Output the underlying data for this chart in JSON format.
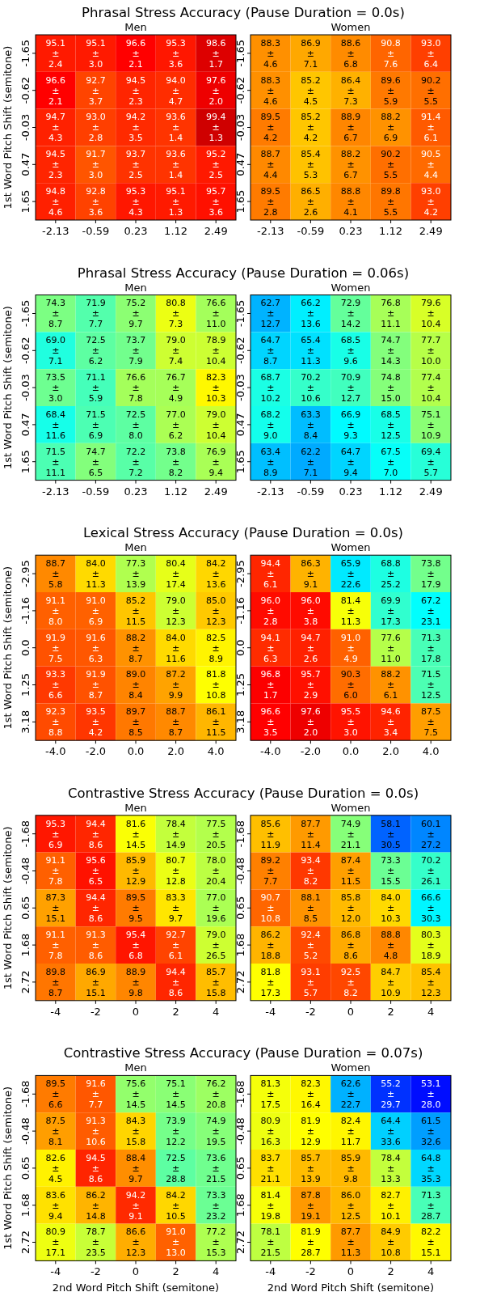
{
  "chart_data": [
    {
      "type": "heatmap",
      "title": "Phrasal Stress Accuracy (Pause Duration = 0.0s)",
      "subtitle": "Men",
      "ylabel": "1st Word Pitch Shift (semitone)",
      "data_labels": true,
      "categories": [
        "-2.13",
        "-0.59",
        "0.23",
        "1.12",
        "2.49"
      ],
      "y_categories": [
        "-1.65",
        "-0.62",
        "-0.03",
        "0.47",
        "1.65"
      ],
      "cells": [
        [
          95.1,
          95.1,
          96.6,
          95.3,
          98.6
        ],
        [
          96.6,
          92.7,
          94.5,
          94.0,
          97.6
        ],
        [
          94.7,
          93.0,
          94.2,
          93.6,
          99.4
        ],
        [
          94.5,
          91.7,
          93.7,
          93.6,
          95.2
        ],
        [
          94.8,
          92.8,
          95.3,
          95.1,
          95.7
        ]
      ],
      "cell_labels": [
        [
          "95.1",
          "95.1",
          "96.6",
          "95.3",
          "98.6"
        ],
        [
          "96.6",
          "92.7",
          "94.5",
          "94.0",
          "97.6"
        ],
        [
          "94.7",
          "93.0",
          "94.2",
          "93.6",
          "99.4"
        ],
        [
          "94.5",
          "91.7",
          "93.7",
          "93.6",
          "95.2"
        ],
        [
          "94.8",
          "92.8",
          "95.3",
          "95.1",
          "95.7"
        ]
      ],
      "annotations": [
        "±\n2.4",
        "±\n3.0",
        "±\n2.1",
        "±\n3.6",
        "±\n1.7",
        "±\n2.1",
        "±\n3.7",
        "±\n2.3",
        "±\n4.7",
        "±\n2.0",
        "±\n4.3",
        "±\n2.8",
        "±\n3.5",
        "±\n1.4",
        "±\n1.3",
        "±\n2.3",
        "±\n3.0",
        "±\n2.5",
        "±\n1.4",
        "±\n2.5",
        "±\n4.6",
        "±\n3.6",
        "±\n4.3",
        "±\n1.3",
        "±\n3.6"
      ]
    },
    {
      "type": "heatmap",
      "subtitle": "Women",
      "data_labels": true,
      "categories": [
        "-2.13",
        "-0.59",
        "0.23",
        "1.12",
        "2.49"
      ],
      "y_categories": [
        "-1.65",
        "-0.62",
        "-0.03",
        "0.47",
        "1.65"
      ],
      "cells": [
        [
          88.3,
          86.9,
          88.6,
          90.8,
          93.0
        ],
        [
          88.3,
          85.2,
          86.4,
          89.6,
          90.2
        ],
        [
          89.5,
          85.2,
          88.9,
          88.2,
          91.4
        ],
        [
          88.7,
          85.4,
          88.2,
          90.2,
          90.5
        ],
        [
          89.5,
          86.5,
          88.8,
          89.8,
          93.0
        ]
      ],
      "cell_labels": [
        [
          "88.3",
          "86.9",
          "88.6",
          "90.8",
          "93.0"
        ],
        [
          "88.3",
          "85.2",
          "86.4",
          "89.6",
          "90.2"
        ],
        [
          "89.5",
          "85.2",
          "88.9",
          "88.2",
          "91.4"
        ],
        [
          "88.7",
          "85.4",
          "88.2",
          "90.2",
          "90.5"
        ],
        [
          "89.5",
          "86.5",
          "88.8",
          "89.8",
          "93.0"
        ]
      ],
      "annotations": [
        "±\n4.6",
        "±\n7.1",
        "±\n6.8",
        "±\n7.6",
        "±\n6.4",
        "±\n4.6",
        "±\n4.5",
        "±\n7.3",
        "±\n5.9",
        "±\n5.5",
        "±\n4.2",
        "±\n4.2",
        "±\n6.7",
        "±\n6.9",
        "±\n6.1",
        "±\n4.4",
        "±\n5.3",
        "±\n6.7",
        "±\n5.5",
        "±\n4.4",
        "±\n2.8",
        "±\n2.6",
        "±\n4.1",
        "±\n5.5",
        "±\n4.2"
      ]
    },
    {
      "type": "heatmap",
      "title": "Phrasal Stress Accuracy (Pause Duration = 0.06s)",
      "subtitle": "Men",
      "ylabel": "1st Word Pitch Shift (semitone)",
      "data_labels": true,
      "categories": [
        "-2.13",
        "-0.59",
        "0.23",
        "1.12",
        "2.49"
      ],
      "y_categories": [
        "-1.65",
        "-0.62",
        "-0.03",
        "0.47",
        "1.65"
      ],
      "cells": [
        [
          74.3,
          71.9,
          75.2,
          80.8,
          76.6
        ],
        [
          69.0,
          72.5,
          73.7,
          79.0,
          78.9
        ],
        [
          73.5,
          71.1,
          76.6,
          76.7,
          82.3
        ],
        [
          68.4,
          71.5,
          72.5,
          77.0,
          79.0
        ],
        [
          71.5,
          74.7,
          72.2,
          73.8,
          76.9
        ]
      ],
      "cell_labels": [
        [
          "74.3",
          "71.9",
          "75.2",
          "80.8",
          "76.6"
        ],
        [
          "69.0",
          "72.5",
          "73.7",
          "79.0",
          "78.9"
        ],
        [
          "73.5",
          "71.1",
          "76.6",
          "76.7",
          "82.3"
        ],
        [
          "68.4",
          "71.5",
          "72.5",
          "77.0",
          "79.0"
        ],
        [
          "71.5",
          "74.7",
          "72.2",
          "73.8",
          "76.9"
        ]
      ],
      "annotations": [
        "±\n8.7",
        "±\n7.7",
        "±\n9.7",
        "±\n7.3",
        "±\n11.0",
        "±\n7.1",
        "±\n6.2",
        "±\n7.9",
        "±\n7.4",
        "±\n10.4",
        "±\n3.0",
        "±\n5.9",
        "±\n7.8",
        "±\n4.9",
        "±\n10.3",
        "±\n11.6",
        "±\n6.9",
        "±\n8.0",
        "±\n6.2",
        "±\n10.4",
        "±\n11.1",
        "±\n6.5",
        "±\n7.2",
        "±\n8.2",
        "±\n9.4"
      ]
    },
    {
      "type": "heatmap",
      "subtitle": "Women",
      "data_labels": true,
      "categories": [
        "-2.13",
        "-0.59",
        "0.23",
        "1.12",
        "2.49"
      ],
      "y_categories": [
        "-1.65",
        "-0.62",
        "-0.03",
        "0.47",
        "1.65"
      ],
      "cells": [
        [
          62.7,
          66.2,
          72.9,
          76.8,
          79.6
        ],
        [
          64.7,
          65.4,
          68.5,
          74.7,
          77.7
        ],
        [
          68.7,
          70.2,
          70.9,
          74.8,
          77.4
        ],
        [
          68.2,
          63.3,
          66.9,
          68.5,
          75.1
        ],
        [
          63.4,
          62.2,
          64.7,
          67.5,
          69.4
        ]
      ],
      "cell_labels": [
        [
          "62.7",
          "66.2",
          "72.9",
          "76.8",
          "79.6"
        ],
        [
          "64.7",
          "65.4",
          "68.5",
          "74.7",
          "77.7"
        ],
        [
          "68.7",
          "70.2",
          "70.9",
          "74.8",
          "77.4"
        ],
        [
          "68.2",
          "63.3",
          "66.9",
          "68.5",
          "75.1"
        ],
        [
          "63.4",
          "62.2",
          "64.7",
          "67.5",
          "69.4"
        ]
      ],
      "annotations": [
        "±\n12.7",
        "±\n13.6",
        "±\n14.2",
        "±\n11.1",
        "±\n10.4",
        "±\n8.7",
        "±\n11.3",
        "±\n9.6",
        "±\n14.3",
        "±\n10.0",
        "±\n10.2",
        "±\n10.6",
        "±\n12.7",
        "±\n15.0",
        "±\n10.4",
        "±\n9.0",
        "±\n8.4",
        "±\n9.3",
        "±\n12.5",
        "±\n10.9",
        "±\n8.9",
        "±\n7.1",
        "±\n9.4",
        "±\n7.0",
        "±\n5.7"
      ]
    },
    {
      "type": "heatmap",
      "title": "Lexical Stress Accuracy (Pause Duration = 0.0s)",
      "subtitle": "Men",
      "ylabel": "1st Word Pitch Shift (semitone)",
      "data_labels": true,
      "categories": [
        "-4.0",
        "-2.0",
        "0.0",
        "2.0",
        "4.0"
      ],
      "y_categories": [
        "-2.95",
        "-1.16",
        "0.0",
        "1.25",
        "3.18"
      ],
      "cells": [
        [
          88.7,
          84.0,
          77.3,
          80.4,
          84.2
        ],
        [
          91.1,
          91.0,
          85.2,
          79.0,
          85.0
        ],
        [
          91.9,
          91.6,
          88.2,
          84.0,
          82.5
        ],
        [
          93.3,
          91.9,
          89.0,
          87.2,
          81.8
        ],
        [
          92.3,
          93.5,
          89.7,
          88.7,
          86.1
        ]
      ],
      "cell_labels": [
        [
          "88.7",
          "84.0",
          "77.3",
          "80.4",
          "84.2"
        ],
        [
          "91.1",
          "91.0",
          "85.2",
          "79.0",
          "85.0"
        ],
        [
          "91.9",
          "91.6",
          "88.2",
          "84.0",
          "82.5"
        ],
        [
          "93.3",
          "91.9",
          "89.0",
          "87.2",
          "81.8"
        ],
        [
          "92.3",
          "93.5",
          "89.7",
          "88.7",
          "86.1"
        ]
      ],
      "annotations": [
        "±\n5.8",
        "±\n11.3",
        "±\n13.9",
        "±\n17.4",
        "±\n13.6",
        "±\n8.0",
        "±\n6.9",
        "±\n11.5",
        "±\n12.3",
        "±\n12.3",
        "±\n7.5",
        "±\n6.3",
        "±\n8.7",
        "±\n11.6",
        "±\n8.9",
        "±\n6.6",
        "±\n8.7",
        "±\n8.4",
        "±\n9.9",
        "±\n10.8",
        "±\n8.8",
        "±\n4.2",
        "±\n8.5",
        "±\n8.7",
        "±\n11.5"
      ]
    },
    {
      "type": "heatmap",
      "subtitle": "Women",
      "data_labels": true,
      "categories": [
        "-4.0",
        "-2.0",
        "0.0",
        "2.0",
        "4.0"
      ],
      "y_categories": [
        "-2.95",
        "-1.16",
        "0.0",
        "1.25",
        "3.18"
      ],
      "cells": [
        [
          94.4,
          86.3,
          65.9,
          68.8,
          73.8
        ],
        [
          96.0,
          96.0,
          81.4,
          69.9,
          67.2
        ],
        [
          94.1,
          94.7,
          91.0,
          77.6,
          71.3
        ],
        [
          96.8,
          95.7,
          90.3,
          88.2,
          71.5
        ],
        [
          96.6,
          97.6,
          95.5,
          94.6,
          87.5
        ]
      ],
      "cell_labels": [
        [
          "94.4",
          "86.3",
          "65.9",
          "68.8",
          "73.8"
        ],
        [
          "96.0",
          "96.0",
          "81.4",
          "69.9",
          "67.2"
        ],
        [
          "94.1",
          "94.7",
          "91.0",
          "77.6",
          "71.3"
        ],
        [
          "96.8",
          "95.7",
          "90.3",
          "88.2",
          "71.5"
        ],
        [
          "96.6",
          "97.6",
          "95.5",
          "94.6",
          "87.5"
        ]
      ],
      "annotations": [
        "±\n6.1",
        "±\n9.1",
        "±\n22.6",
        "±\n25.2",
        "±\n17.9",
        "±\n2.8",
        "±\n3.8",
        "±\n11.3",
        "±\n17.3",
        "±\n23.1",
        "±\n6.3",
        "±\n2.6",
        "±\n4.9",
        "±\n11.0",
        "±\n17.8",
        "±\n1.7",
        "±\n2.9",
        "±\n6.0",
        "±\n6.1",
        "±\n12.5",
        "±\n3.5",
        "±\n2.0",
        "±\n3.0",
        "±\n3.4",
        "±\n7.5"
      ]
    },
    {
      "type": "heatmap",
      "title": "Contrastive Stress Accuracy (Pause Duration = 0.0s)",
      "subtitle": "Men",
      "ylabel": "1st Word Pitch Shift (semitone)",
      "data_labels": true,
      "categories": [
        "-4",
        "-2",
        "0",
        "2",
        "4"
      ],
      "y_categories": [
        "-1.68",
        "-0.48",
        "0.65",
        "1.68",
        "2.72"
      ],
      "cells": [
        [
          95.3,
          94.4,
          81.6,
          78.4,
          77.5
        ],
        [
          91.1,
          95.6,
          85.9,
          80.7,
          78.0
        ],
        [
          87.3,
          94.4,
          89.5,
          83.3,
          77.0
        ],
        [
          91.1,
          91.3,
          95.4,
          92.7,
          79.0
        ],
        [
          89.8,
          86.9,
          88.9,
          94.4,
          85.7
        ]
      ],
      "cell_labels": [
        [
          "95.3",
          "94.4",
          "81.6",
          "78.4",
          "77.5"
        ],
        [
          "91.1",
          "95.6",
          "85.9",
          "80.7",
          "78.0"
        ],
        [
          "87.3",
          "94.4",
          "89.5",
          "83.3",
          "77.0"
        ],
        [
          "91.1",
          "91.3",
          "95.4",
          "92.7",
          "79.0"
        ],
        [
          "89.8",
          "86.9",
          "88.9",
          "94.4",
          "85.7"
        ]
      ],
      "annotations": [
        "±\n6.9",
        "±\n8.6",
        "±\n14.5",
        "±\n14.9",
        "±\n20.5",
        "±\n7.8",
        "±\n6.5",
        "±\n12.9",
        "±\n12.8",
        "±\n20.4",
        "±\n15.1",
        "±\n8.6",
        "±\n9.5",
        "±\n9.7",
        "±\n19.6",
        "±\n7.8",
        "±\n8.6",
        "±\n6.8",
        "±\n6.1",
        "±\n26.5",
        "±\n8.7",
        "±\n15.1",
        "±\n9.8",
        "±\n8.6",
        "±\n15.8"
      ]
    },
    {
      "type": "heatmap",
      "subtitle": "Women",
      "data_labels": true,
      "categories": [
        "-4",
        "-2",
        "0",
        "2",
        "4"
      ],
      "y_categories": [
        "-1.68",
        "-0.48",
        "0.65",
        "1.68",
        "2.72"
      ],
      "cells": [
        [
          85.6,
          87.7,
          74.9,
          58.1,
          60.1
        ],
        [
          89.2,
          93.4,
          87.4,
          73.3,
          70.2
        ],
        [
          90.7,
          88.1,
          85.8,
          84.0,
          66.6
        ],
        [
          86.2,
          92.4,
          86.8,
          88.8,
          80.3
        ],
        [
          81.8,
          93.1,
          92.5,
          84.7,
          85.4
        ]
      ],
      "cell_labels": [
        [
          "85.6",
          "87.7",
          "74.9",
          "58.1",
          "60.1"
        ],
        [
          "89.2",
          "93.4",
          "87.4",
          "73.3",
          "70.2"
        ],
        [
          "90.7",
          "88.1",
          "85.8",
          "84.0",
          "66.6"
        ],
        [
          "86.2",
          "92.4",
          "86.8",
          "88.8",
          "80.3"
        ],
        [
          "81.8",
          "93.1",
          "92.5",
          "84.7",
          "85.4"
        ]
      ],
      "annotations": [
        "±\n11.9",
        "±\n11.4",
        "±\n21.1",
        "±\n30.5",
        "±\n27.2",
        "±\n7.7",
        "±\n8.2",
        "±\n11.5",
        "±\n15.5",
        "±\n26.1",
        "±\n10.8",
        "±\n8.5",
        "±\n12.0",
        "±\n10.3",
        "±\n30.3",
        "±\n18.8",
        "±\n5.2",
        "±\n8.6",
        "±\n4.8",
        "±\n18.9",
        "±\n17.3",
        "±\n5.7",
        "±\n8.2",
        "±\n10.9",
        "±\n12.3"
      ]
    },
    {
      "type": "heatmap",
      "title": "Contrastive Stress Accuracy (Pause Duration = 0.07s)",
      "subtitle": "Men",
      "ylabel": "1st Word Pitch Shift (semitone)",
      "xlabel": "2nd Word Pitch Shift (semitone)",
      "data_labels": true,
      "categories": [
        "-4",
        "-2",
        "0",
        "2",
        "4"
      ],
      "y_categories": [
        "-1.68",
        "-0.48",
        "0.65",
        "1.68",
        "2.72"
      ],
      "cells": [
        [
          89.5,
          91.6,
          75.6,
          75.1,
          76.2
        ],
        [
          87.5,
          91.3,
          84.3,
          73.9,
          74.9
        ],
        [
          82.6,
          94.5,
          88.4,
          72.5,
          73.6
        ],
        [
          83.6,
          86.2,
          94.2,
          84.2,
          73.3
        ],
        [
          80.9,
          78.7,
          86.6,
          91.0,
          77.2
        ]
      ],
      "cell_labels": [
        [
          "89.5",
          "91.6",
          "75.6",
          "75.1",
          "76.2"
        ],
        [
          "87.5",
          "91.3",
          "84.3",
          "73.9",
          "74.9"
        ],
        [
          "82.6",
          "94.5",
          "88.4",
          "72.5",
          "73.6"
        ],
        [
          "83.6",
          "86.2",
          "94.2",
          "84.2",
          "73.3"
        ],
        [
          "80.9",
          "78.7",
          "86.6",
          "91.0",
          "77.2"
        ]
      ],
      "annotations": [
        "±\n6.6",
        "±\n7.7",
        "±\n14.5",
        "±\n14.5",
        "±\n20.8",
        "±\n8.1",
        "±\n10.6",
        "±\n15.8",
        "±\n12.2",
        "±\n19.5",
        "±\n4.5",
        "±\n8.6",
        "±\n9.7",
        "±\n28.8",
        "±\n21.5",
        "±\n9.4",
        "±\n14.8",
        "±\n9.1",
        "±\n10.5",
        "±\n23.2",
        "±\n17.1",
        "±\n23.5",
        "±\n12.3",
        "±\n13.0",
        "±\n15.3"
      ]
    },
    {
      "type": "heatmap",
      "subtitle": "Women",
      "xlabel": "2nd Word Pitch Shift (semitone)",
      "data_labels": true,
      "categories": [
        "-4",
        "-2",
        "0",
        "2",
        "4"
      ],
      "y_categories": [
        "-1.68",
        "-0.48",
        "0.65",
        "1.68",
        "2.72"
      ],
      "cells": [
        [
          81.3,
          82.3,
          62.6,
          55.2,
          53.1
        ],
        [
          80.9,
          81.9,
          82.4,
          64.4,
          61.5
        ],
        [
          83.7,
          85.7,
          85.9,
          78.4,
          64.8
        ],
        [
          81.4,
          87.8,
          86.0,
          82.7,
          71.3
        ],
        [
          78.1,
          81.9,
          87.7,
          84.9,
          82.2
        ]
      ],
      "cell_labels": [
        [
          "81.3",
          "82.3",
          "62.6",
          "55.2",
          "53.1"
        ],
        [
          "80.9",
          "81.9",
          "82.4",
          "64.4",
          "61.5"
        ],
        [
          "83.7",
          "85.7",
          "85.9",
          "78.4",
          "64.8"
        ],
        [
          "81.4",
          "87.8",
          "86.0",
          "82.7",
          "71.3"
        ],
        [
          "78.1",
          "81.9",
          "87.7",
          "84.9",
          "82.2"
        ]
      ],
      "annotations": [
        "±\n17.5",
        "±\n16.4",
        "±\n22.7",
        "±\n29.7",
        "±\n28.0",
        "±\n16.3",
        "±\n12.9",
        "±\n11.7",
        "±\n33.6",
        "±\n32.6",
        "±\n21.1",
        "±\n13.9",
        "±\n9.8",
        "±\n13.3",
        "±\n35.3",
        "±\n19.8",
        "±\n19.1",
        "±\n12.5",
        "±\n10.1",
        "±\n28.7",
        "±\n21.5",
        "±\n28.7",
        "±\n11.3",
        "±\n10.8",
        "±\n15.1"
      ]
    }
  ]
}
